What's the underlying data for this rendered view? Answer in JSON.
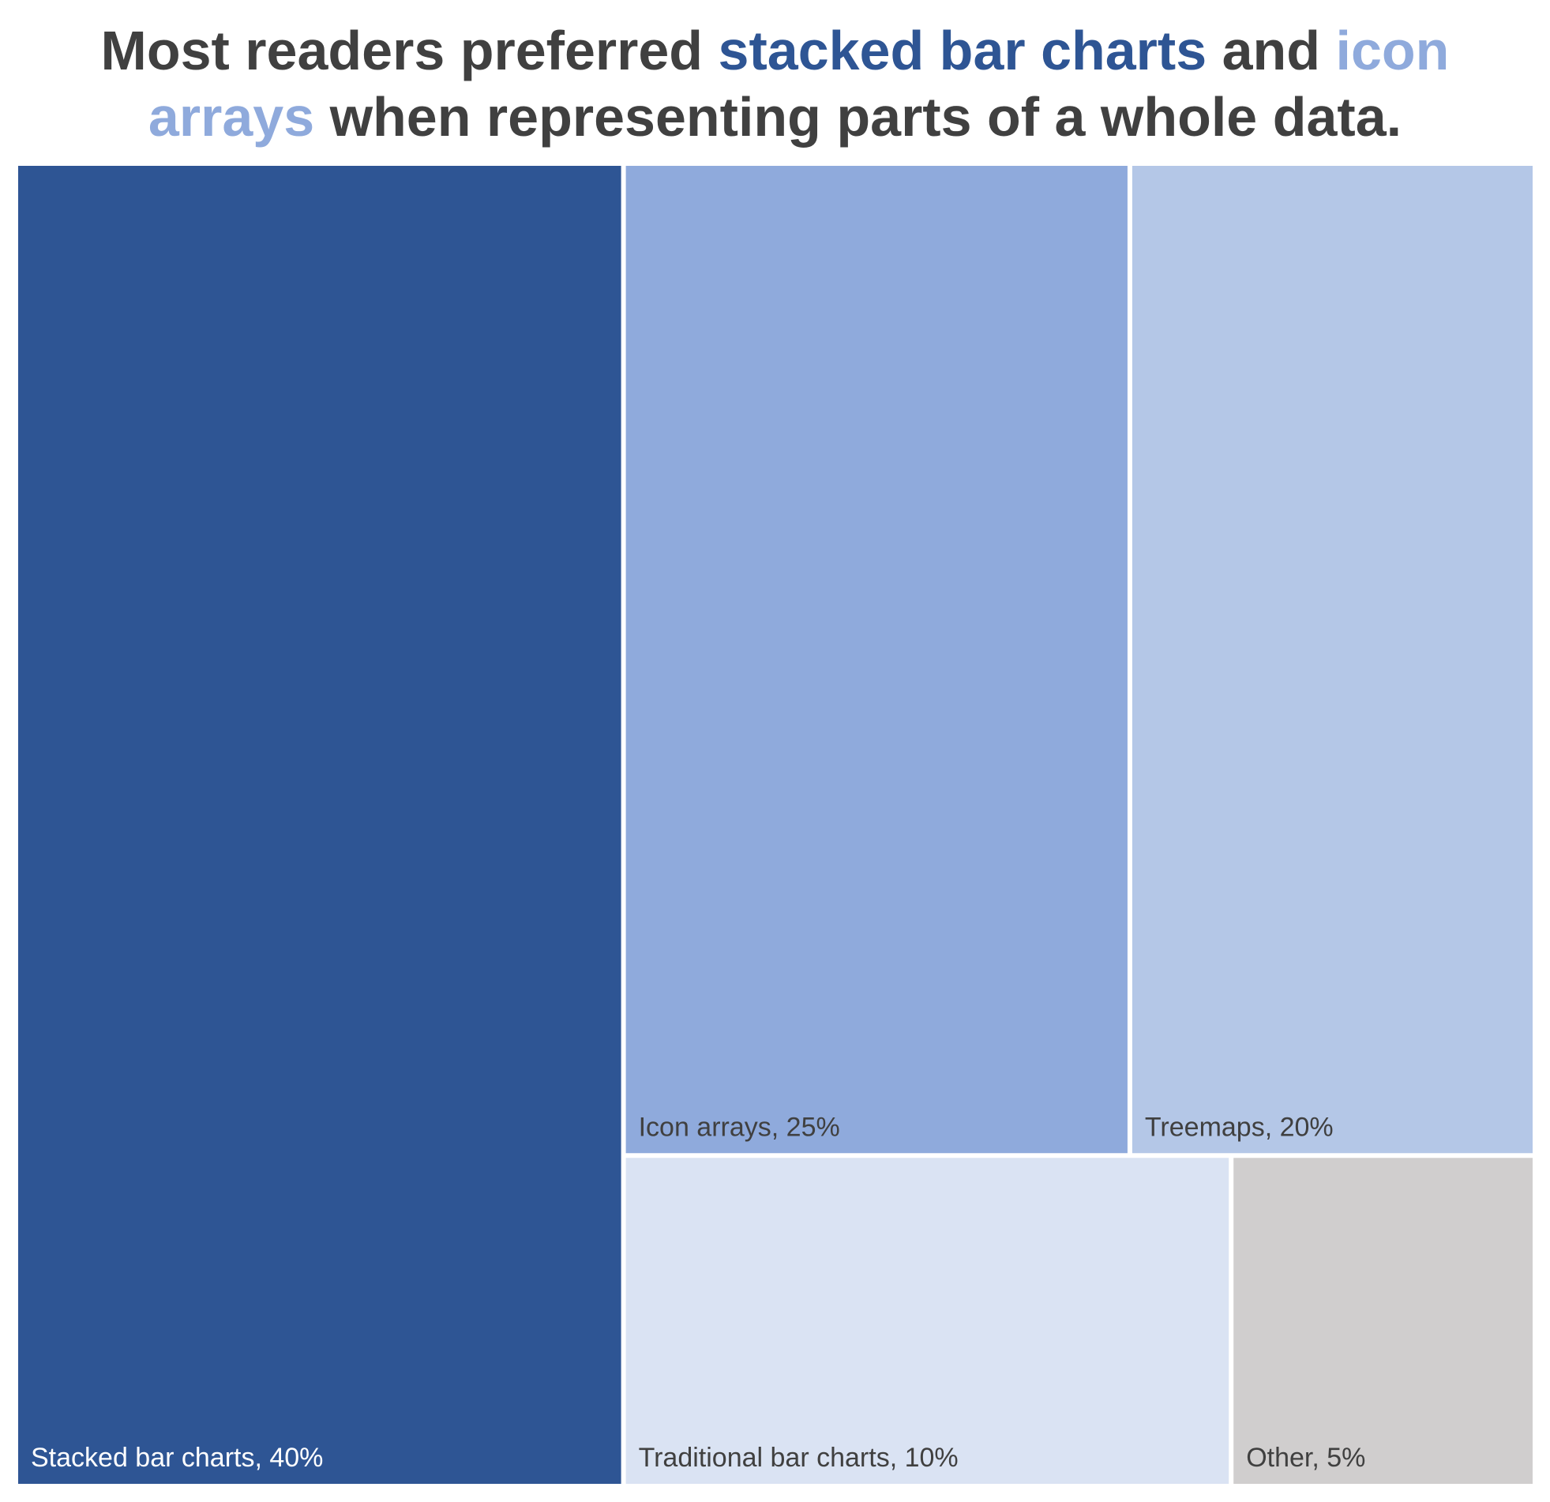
{
  "title": {
    "part1": "Most readers preferred ",
    "highlight1": "stacked bar charts",
    "part2": " and ",
    "highlight2": "icon",
    "highlight2b": "arrays",
    "part3": " when representing parts of a whole data."
  },
  "colors": {
    "title_text": "#404040",
    "highlight1": "#2e5594",
    "highlight2": "#8faadc",
    "label_dark_text": "#404040",
    "label_light_text": "#ffffff"
  },
  "chart_data": {
    "type": "treemap",
    "title": "Most readers preferred stacked bar charts and icon arrays when representing parts of a whole data.",
    "unit": "%",
    "items": [
      {
        "name": "Stacked bar charts",
        "value": 40,
        "label": "Stacked bar charts, 40%",
        "color": "#2e5594",
        "text_color": "#ffffff"
      },
      {
        "name": "Icon arrays",
        "value": 25,
        "label": "Icon arrays, 25%",
        "color": "#8faadc",
        "text_color": "#404040"
      },
      {
        "name": "Treemaps",
        "value": 20,
        "label": "Treemaps, 20%",
        "color": "#b4c7e7",
        "text_color": "#404040"
      },
      {
        "name": "Traditional bar charts",
        "value": 10,
        "label": "Traditional bar charts, 10%",
        "color": "#dae3f3",
        "text_color": "#404040"
      },
      {
        "name": "Other",
        "value": 5,
        "label": "Other, 5%",
        "color": "#d0cece",
        "text_color": "#404040"
      }
    ]
  }
}
